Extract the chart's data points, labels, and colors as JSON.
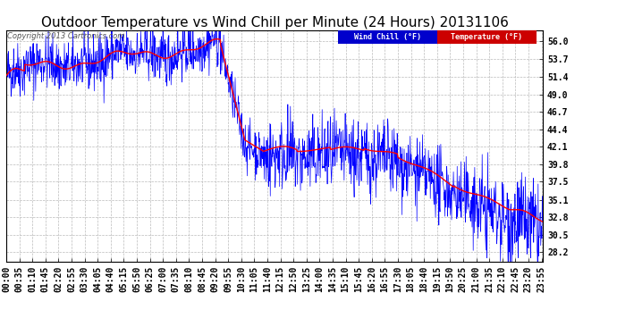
{
  "title": "Outdoor Temperature vs Wind Chill per Minute (24 Hours) 20131106",
  "copyright": "Copyright 2013 Cartronics.com",
  "legend_wind_chill": "Wind Chill (°F)",
  "legend_temperature": "Temperature (°F)",
  "y_ticks": [
    28.2,
    30.5,
    32.8,
    35.1,
    37.5,
    39.8,
    42.1,
    44.4,
    46.7,
    49.0,
    51.4,
    53.7,
    56.0
  ],
  "y_min": 27.0,
  "y_max": 57.5,
  "bg_color": "#ffffff",
  "plot_bg_color": "#ffffff",
  "grid_color": "#bbbbbb",
  "wind_chill_color": "#0000ff",
  "temperature_color": "#ff0000",
  "legend_wind_bg": "#0000cc",
  "legend_temp_bg": "#cc0000",
  "title_fontsize": 11,
  "tick_fontsize": 7,
  "minutes_per_day": 1440,
  "x_tick_interval": 35
}
